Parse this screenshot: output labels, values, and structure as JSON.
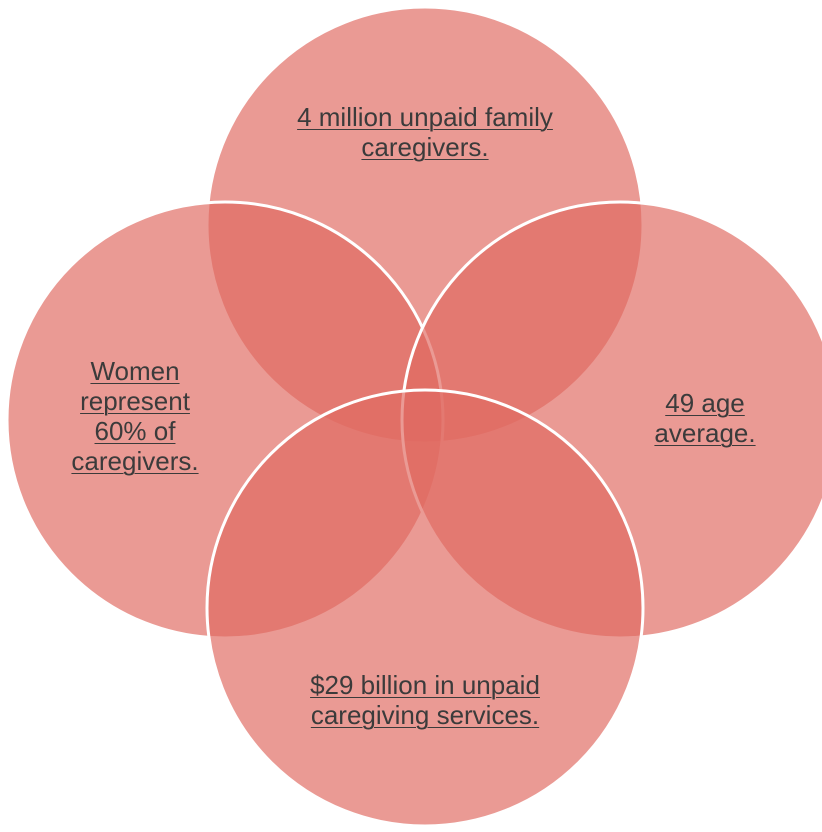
{
  "diagram": {
    "colors": {
      "circle_fill": "#e06a62",
      "circle_stroke": "#ffffff",
      "text": "#3b3b3b"
    },
    "circles": [
      {
        "id": "top",
        "lines": [
          {
            "parts": [
              {
                "text": "4 million unpaid family",
                "underline": true
              }
            ]
          },
          {
            "parts": [
              {
                "text": "caregivers.",
                "underline": true
              }
            ]
          }
        ]
      },
      {
        "id": "left",
        "lines": [
          {
            "parts": [
              {
                "text": "Women",
                "underline": true
              }
            ]
          },
          {
            "parts": [
              {
                "text": "represent",
                "underline": true
              }
            ]
          },
          {
            "parts": [
              {
                "text": "60% of",
                "underline": true
              }
            ]
          },
          {
            "parts": [
              {
                "text": "caregivers. ",
                "underline": true
              }
            ]
          }
        ]
      },
      {
        "id": "right",
        "lines": [
          {
            "parts": [
              {
                "text": "49 age",
                "underline": true
              }
            ]
          },
          {
            "parts": [
              {
                "text": "average.",
                "underline": true
              }
            ]
          }
        ]
      },
      {
        "id": "bottom",
        "lines": [
          {
            "parts": [
              {
                "text": "$29 billion in unpaid",
                "underline": true
              }
            ]
          },
          {
            "parts": [
              {
                "text": "caregiving services",
                "underline": true
              },
              {
                "text": ".",
                "underline": false
              }
            ]
          }
        ]
      }
    ]
  }
}
